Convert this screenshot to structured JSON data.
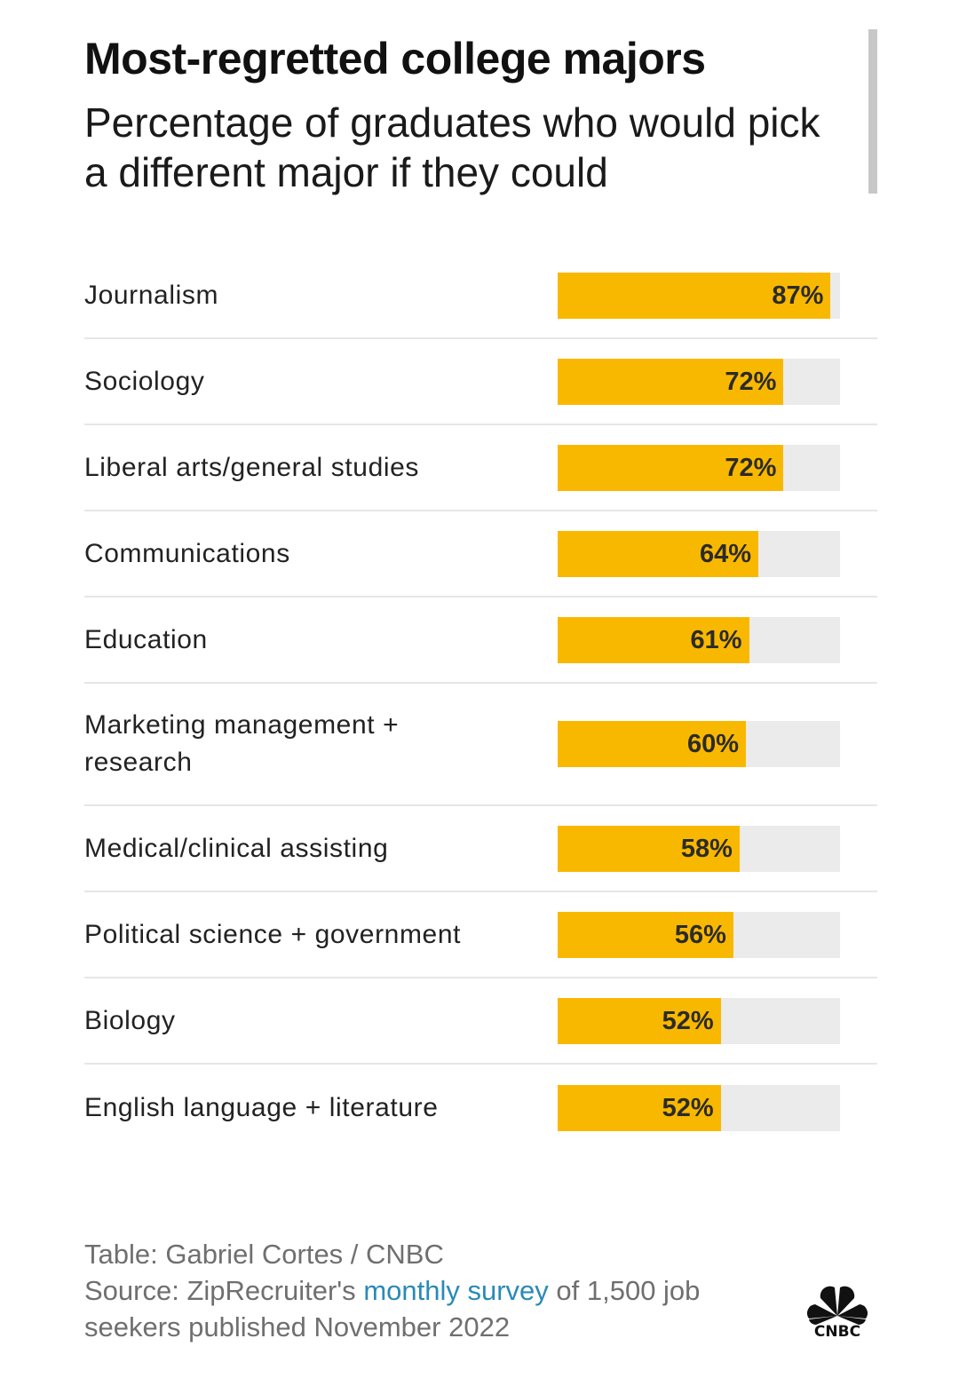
{
  "header": {
    "title": "Most-regretted college majors",
    "subtitle": "Percentage of graduates who would pick a different major if they could"
  },
  "chart_data": {
    "type": "bar",
    "orientation": "horizontal",
    "title": "Most-regretted college majors",
    "subtitle": "Percentage of graduates who would pick a different major if they could",
    "categories": [
      "Journalism",
      "Sociology",
      "Liberal arts/general studies",
      "Communications",
      "Education",
      "Marketing management + research",
      "Medical/clinical assisting",
      "Political science + government",
      "Biology",
      "English language + literature"
    ],
    "values": [
      87,
      72,
      72,
      64,
      61,
      60,
      58,
      56,
      52,
      52
    ],
    "value_labels": [
      "87%",
      "72%",
      "72%",
      "64%",
      "61%",
      "60%",
      "58%",
      "56%",
      "52%",
      "52%"
    ],
    "xlim": [
      0,
      90
    ],
    "unit": "%",
    "colors": {
      "bar": "#f9b800",
      "track": "#ebebeb"
    }
  },
  "footer": {
    "credit": "Table: Gabriel Cortes / CNBC",
    "source_prefix": "Source: ZipRecruiter's ",
    "source_link": "monthly survey",
    "source_suffix": " of 1,500 job seekers published November 2022",
    "logo_text": "CNBC"
  },
  "colors": {
    "accent": "#f9b800",
    "link": "#2a8ab6",
    "text": "#1a1a1a",
    "muted": "#6f6f6f"
  }
}
